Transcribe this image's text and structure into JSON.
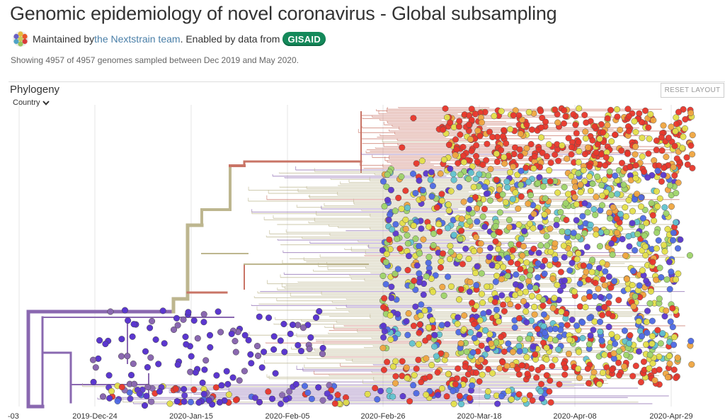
{
  "header": {
    "title": "Genomic epidemiology of novel coronavirus - Global subsampling",
    "maintained_prefix": "Maintained by ",
    "maintainer_link": "the Nextstrain team",
    "enabled_text": ". Enabled by data from ",
    "gisaid_badge": "GISAID",
    "summary": "Showing 4957 of 4957 genomes sampled between Dec 2019 and May 2020."
  },
  "panel": {
    "title": "Phylogeny",
    "color_by": "Country",
    "reset_button": "RESET LAYOUT"
  },
  "axis": {
    "tick_labels": [
      "-03",
      "2019-Dec-24",
      "2020-Jan-15",
      "2020-Feb-05",
      "2020-Feb-26",
      "2020-Mar-18",
      "2020-Apr-08",
      "2020-Apr-29"
    ]
  },
  "icons": {
    "logo": "nextstrain-logo-icon",
    "dropdown": "chevron-down-icon"
  },
  "colors": {
    "purple": "#8a68b0",
    "olive": "#bdb68f",
    "rust": "#c97466",
    "red": "#e8362b",
    "yellow": "#e4e04a",
    "blue": "#4e6ae4",
    "indigo": "#5b37cf",
    "cyan": "#62c3cf",
    "green": "#9fd46a",
    "orange": "#f0a641",
    "link": "#4a7fa8",
    "gisaid": "#14895a"
  }
}
